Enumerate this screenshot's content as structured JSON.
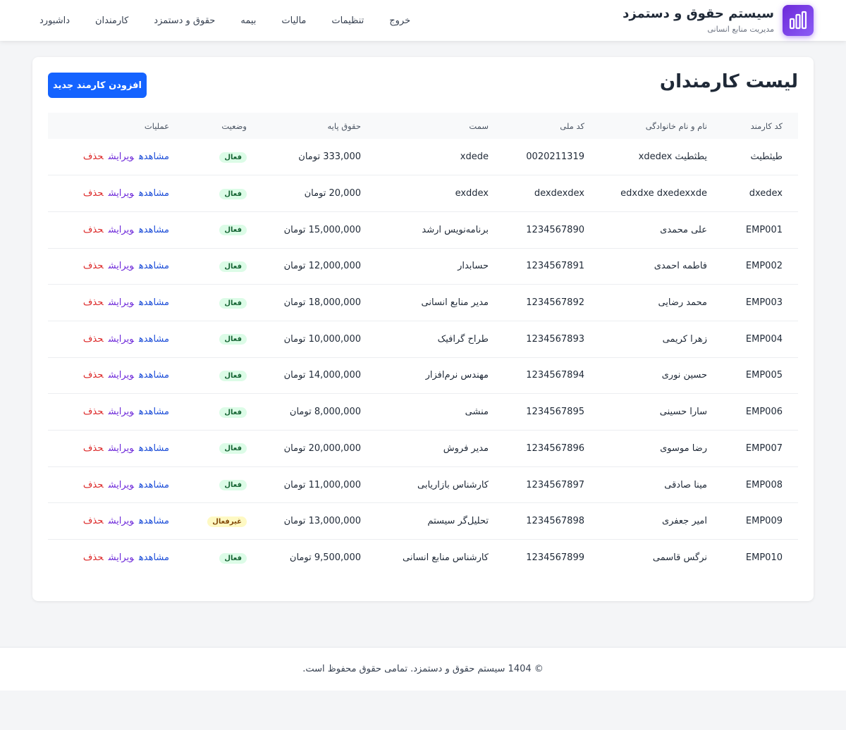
{
  "header": {
    "title": "سیستم حقوق و دستمزد",
    "subtitle": "مدیریت منابع انسانی",
    "nav": [
      "داشبورد",
      "کارمندان",
      "حقوق و دستمزد",
      "بیمه",
      "مالیات",
      "تنظیمات",
      "خروج"
    ]
  },
  "page": {
    "title": "لیست کارمندان",
    "add_button": "افزودن کارمند جدید"
  },
  "table": {
    "headers": [
      "کد کارمند",
      "نام و نام خانوادگی",
      "کد ملی",
      "سمت",
      "حقوق پایه",
      "وضعیت",
      "عملیات"
    ],
    "actions": [
      "مشاهده",
      "ویرایش",
      "حذف"
    ],
    "rows": [
      [
        "طیثطیث",
        "یطثطیث xdedex",
        "0020211319",
        "xdede",
        "333,000 تومان",
        "فعال"
      ],
      [
        "dxedex",
        "edxdxe dxedexxde",
        "dexdexdex",
        "exddex",
        "20,000 تومان",
        "فعال"
      ],
      [
        "EMP001",
        "علی محمدی",
        "1234567890",
        "برنامه‌نویس ارشد",
        "15,000,000 تومان",
        "فعال"
      ],
      [
        "EMP002",
        "فاطمه احمدی",
        "1234567891",
        "حسابدار",
        "12,000,000 تومان",
        "فعال"
      ],
      [
        "EMP003",
        "محمد رضایی",
        "1234567892",
        "مدیر منابع انسانی",
        "18,000,000 تومان",
        "فعال"
      ],
      [
        "EMP004",
        "زهرا کریمی",
        "1234567893",
        "طراح گرافیک",
        "10,000,000 تومان",
        "فعال"
      ],
      [
        "EMP005",
        "حسین نوری",
        "1234567894",
        "مهندس نرم‌افزار",
        "14,000,000 تومان",
        "فعال"
      ],
      [
        "EMP006",
        "سارا حسینی",
        "1234567895",
        "منشی",
        "8,000,000 تومان",
        "فعال"
      ],
      [
        "EMP007",
        "رضا موسوی",
        "1234567896",
        "مدیر فروش",
        "20,000,000 تومان",
        "فعال"
      ],
      [
        "EMP008",
        "مینا صادقی",
        "1234567897",
        "کارشناس بازاریابی",
        "11,000,000 تومان",
        "فعال"
      ],
      [
        "EMP009",
        "امیر جعفری",
        "1234567898",
        "تحلیل‌گر سیستم",
        "13,000,000 تومان",
        "غیرفعال"
      ],
      [
        "EMP010",
        "نرگس قاسمی",
        "1234567899",
        "کارشناس منابع انسانی",
        "9,500,000 تومان",
        "فعال"
      ]
    ]
  },
  "footer": {
    "text": "© 1404 سیستم حقوق و دستمزد. تمامی حقوق محفوظ است."
  }
}
